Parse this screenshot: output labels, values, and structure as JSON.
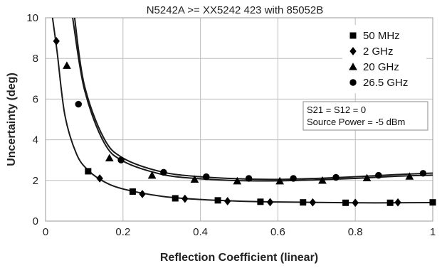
{
  "chart_data": {
    "type": "line",
    "title": "N5242A >= XX5242 423 with 85052B",
    "xlabel": "Reflection Coefficient (linear)",
    "ylabel": "Uncertainty (deg)",
    "xlim": [
      0,
      1
    ],
    "ylim": [
      0,
      10
    ],
    "x_ticks": [
      "0",
      "0.2",
      "0.4",
      "0.6",
      "0.8",
      "1"
    ],
    "y_ticks": [
      "0",
      "2",
      "4",
      "6",
      "8",
      "10"
    ],
    "grid": true,
    "legend_position": "top-right",
    "series": [
      {
        "name": "50 MHz",
        "marker": "square",
        "x": [
          0.11,
          0.225,
          0.335,
          0.445,
          0.555,
          0.665,
          0.775,
          0.89,
          1.0
        ],
        "y": [
          2.45,
          1.45,
          1.12,
          1.02,
          0.95,
          0.92,
          0.9,
          0.9,
          0.92
        ]
      },
      {
        "name": "2 GHz",
        "marker": "diamond",
        "x": [
          0.028,
          0.14,
          0.25,
          0.36,
          0.47,
          0.58,
          0.69,
          0.8,
          0.91
        ],
        "y": [
          8.85,
          2.1,
          1.33,
          1.1,
          0.98,
          0.93,
          0.92,
          0.9,
          0.92
        ]
      },
      {
        "name": "20 GHz",
        "marker": "triangle",
        "x": [
          0.055,
          0.165,
          0.275,
          0.385,
          0.495,
          0.605,
          0.715,
          0.83,
          0.94
        ],
        "y": [
          7.65,
          3.1,
          2.25,
          2.05,
          1.97,
          1.97,
          2.0,
          2.12,
          2.2
        ]
      },
      {
        "name": "26.5 GHz",
        "marker": "circle",
        "x": [
          0.085,
          0.195,
          0.305,
          0.415,
          0.525,
          0.64,
          0.75,
          0.86,
          0.975
        ],
        "y": [
          5.75,
          3.0,
          2.4,
          2.18,
          2.1,
          2.1,
          2.15,
          2.25,
          2.35
        ]
      }
    ],
    "curves": [
      {
        "x": [
          0.07,
          0.1,
          0.15,
          0.2,
          0.3,
          0.4,
          0.5,
          0.6,
          0.7,
          0.8,
          0.9,
          1.0
        ],
        "y": [
          10,
          6.5,
          3.9,
          2.95,
          2.3,
          2.08,
          1.99,
          1.98,
          2.03,
          2.1,
          2.2,
          2.26
        ]
      },
      {
        "x": [
          0.075,
          0.1,
          0.15,
          0.2,
          0.3,
          0.4,
          0.5,
          0.6,
          0.7,
          0.8,
          0.9,
          1.0
        ],
        "y": [
          10,
          6.7,
          4.1,
          3.1,
          2.42,
          2.18,
          2.08,
          2.05,
          2.1,
          2.18,
          2.28,
          2.36
        ]
      },
      {
        "x": [
          0.018,
          0.03,
          0.05,
          0.08,
          0.11,
          0.15,
          0.2,
          0.3,
          0.4,
          0.5,
          0.6,
          0.7,
          0.8,
          0.9,
          1.0
        ],
        "y": [
          10,
          8.3,
          5.2,
          3.3,
          2.5,
          1.95,
          1.58,
          1.22,
          1.06,
          0.98,
          0.94,
          0.92,
          0.9,
          0.9,
          0.91
        ]
      }
    ],
    "annotations": [
      "S21 = S12 = 0",
      "Source Power = -5 dBm"
    ]
  }
}
